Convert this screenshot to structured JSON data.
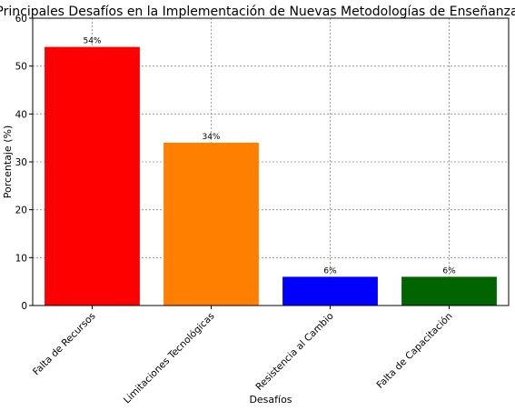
{
  "chart_data": {
    "type": "bar",
    "title": "Principales Desafíos en la Implementación de Nuevas Metodologías de Enseñanza",
    "xlabel": "Desafíos",
    "ylabel": "Porcentaje (%)",
    "categories": [
      "Falta de Recursos",
      "Limitaciones Tecnológicas",
      "Resistencia al Cambio",
      "Falta de Capacitación"
    ],
    "values": [
      54,
      34,
      6,
      6
    ],
    "value_labels": [
      "54%",
      "34%",
      "6%",
      "6%"
    ],
    "colors": [
      "#ff0000",
      "#ff8000",
      "#0000ff",
      "#006400"
    ],
    "ylim": [
      0,
      60
    ],
    "yticks": [
      0,
      10,
      20,
      30,
      40,
      50,
      60
    ],
    "grid": true,
    "legend": "none"
  }
}
